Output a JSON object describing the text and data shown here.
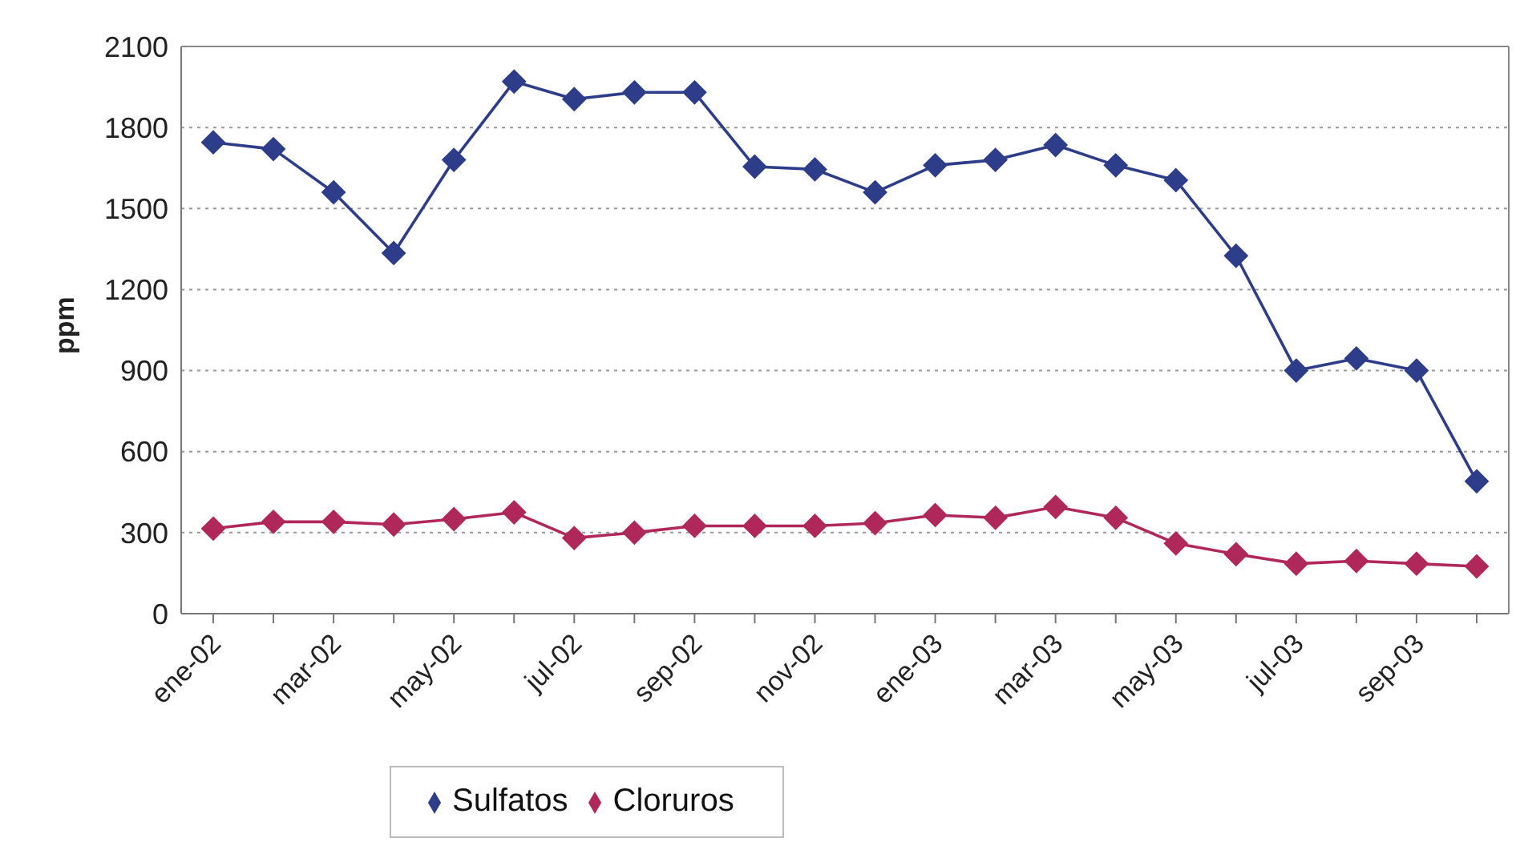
{
  "chart_data": {
    "type": "line",
    "ylabel": "ppm",
    "categories": [
      "ene-02",
      null,
      "mar-02",
      null,
      "may-02",
      null,
      "jul-02",
      null,
      "sep-02",
      null,
      "nov-02",
      null,
      "ene-03",
      null,
      "mar-03",
      null,
      "may-03",
      null,
      "jul-03",
      null,
      "sep-03",
      null
    ],
    "series": [
      {
        "name": "Sulfatos",
        "color": "#2e3d8a",
        "values": [
          1745,
          1720,
          1560,
          1335,
          1680,
          1970,
          1905,
          1930,
          1930,
          1655,
          1645,
          1560,
          1660,
          1680,
          1735,
          1660,
          1605,
          1325,
          900,
          945,
          900,
          490
        ]
      },
      {
        "name": "Cloruros",
        "color": "#b0285a",
        "values": [
          315,
          340,
          340,
          330,
          350,
          375,
          280,
          300,
          325,
          325,
          325,
          335,
          365,
          355,
          395,
          355,
          260,
          220,
          185,
          195,
          185,
          175
        ]
      }
    ],
    "ylim": [
      0,
      2100
    ],
    "yticks": [
      0,
      300,
      600,
      900,
      1200,
      1500,
      1800,
      2100
    ],
    "grid": "y",
    "legend": "bottom",
    "marker": "diamond",
    "line_style": "solid"
  }
}
